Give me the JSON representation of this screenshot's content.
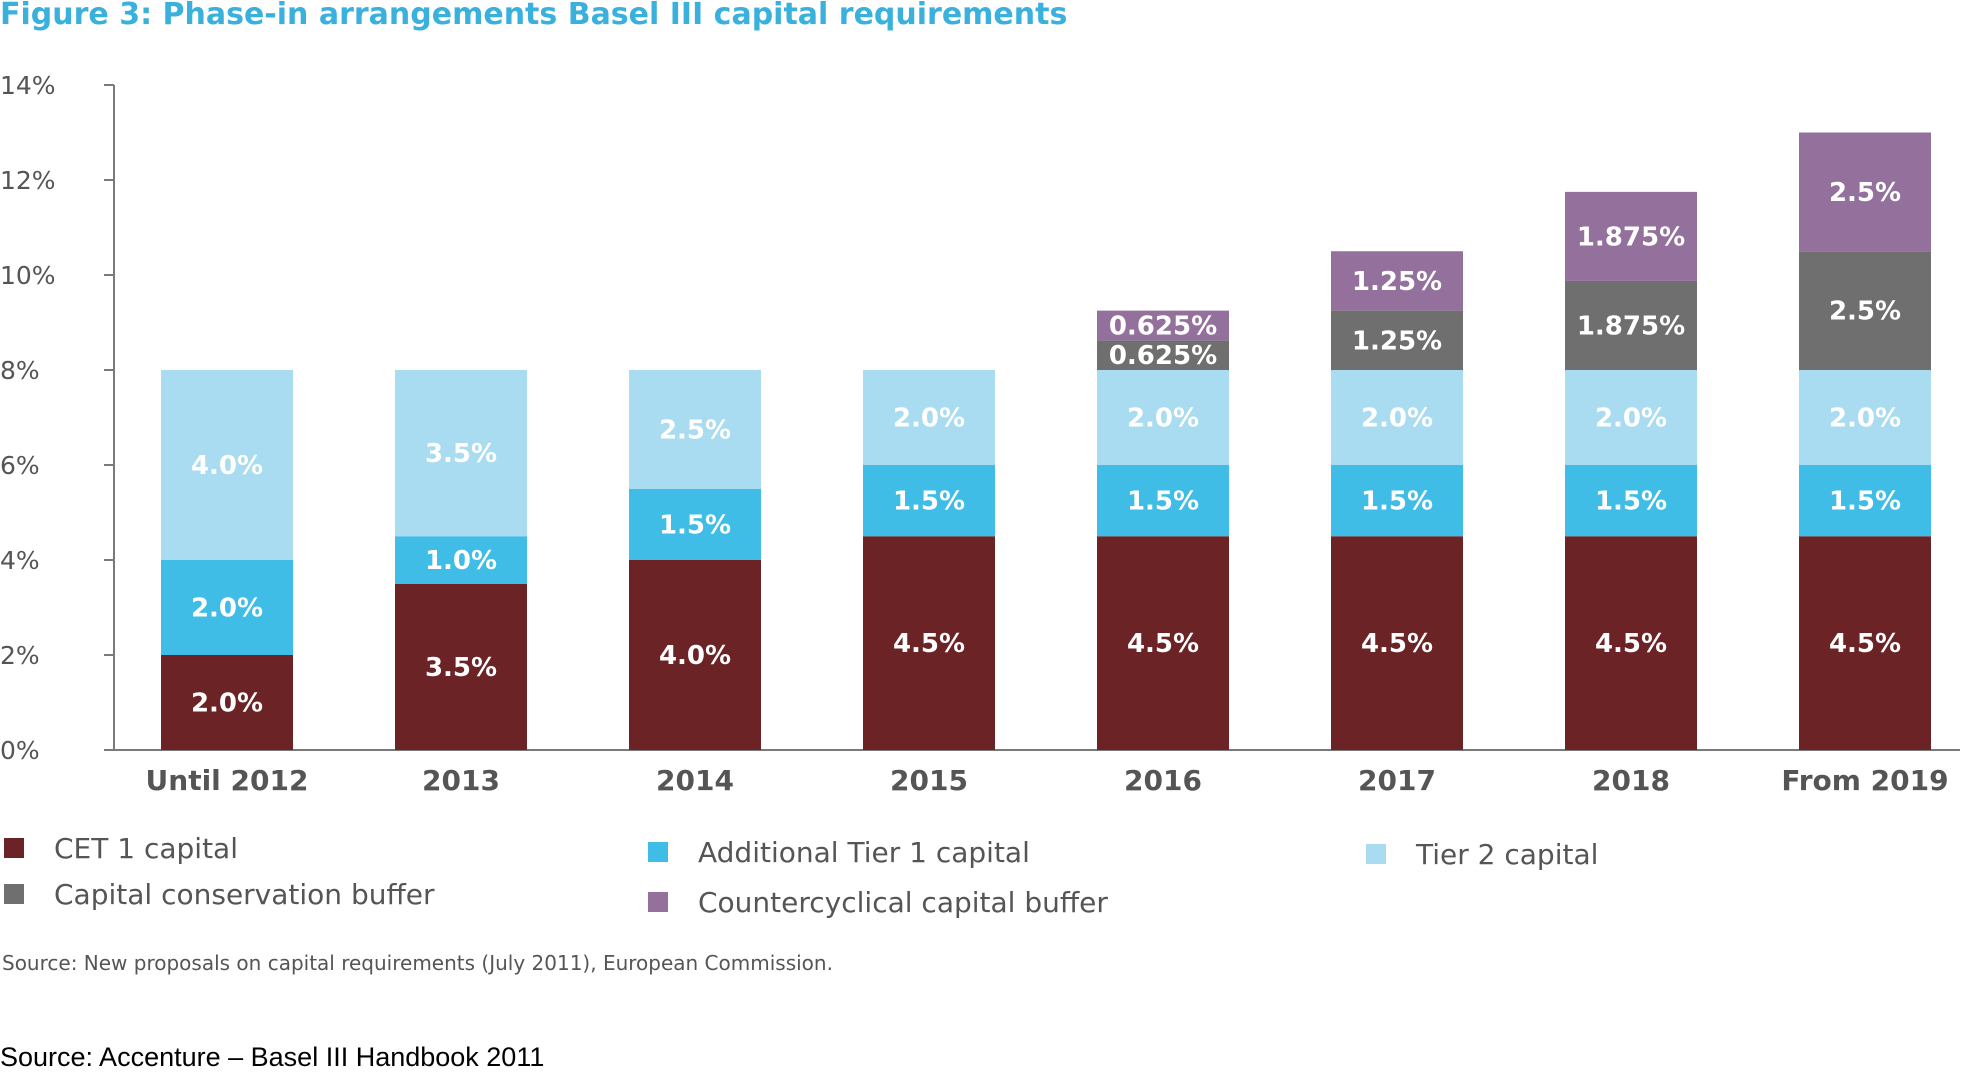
{
  "colors": {
    "title": "#3ab0dc",
    "axis": "#7a7a7a",
    "text": "#555555",
    "cet1": "#6b2326",
    "at1": "#40bde6",
    "tier2": "#a9dcf0",
    "conservation": "#6f6f6f",
    "countercyclical": "#94719c"
  },
  "chart_data": {
    "type": "bar",
    "stacked": true,
    "title": "Figure 3: Phase-in arrangements Basel III capital requirements",
    "xlabel": "",
    "ylabel": "",
    "ylim": [
      0,
      14
    ],
    "yticks": [
      "0%",
      "2%",
      "4%",
      "6%",
      "8%",
      "10%",
      "12%",
      "14%"
    ],
    "grid": false,
    "categories": [
      "Until 2012",
      "2013",
      "2014",
      "2015",
      "2016",
      "2017",
      "2018",
      "From 2019"
    ],
    "series": [
      {
        "name": "CET 1 capital",
        "color_key": "cet1",
        "values": [
          2.0,
          3.5,
          4.0,
          4.5,
          4.5,
          4.5,
          4.5,
          4.5
        ],
        "labels": [
          "2.0%",
          "3.5%",
          "4.0%",
          "4.5%",
          "4.5%",
          "4.5%",
          "4.5%",
          "4.5%"
        ]
      },
      {
        "name": "Additional Tier 1 capital",
        "color_key": "at1",
        "values": [
          2.0,
          1.0,
          1.5,
          1.5,
          1.5,
          1.5,
          1.5,
          1.5
        ],
        "labels": [
          "2.0%",
          "1.0%",
          "1.5%",
          "1.5%",
          "1.5%",
          "1.5%",
          "1.5%",
          "1.5%"
        ]
      },
      {
        "name": "Tier 2 capital",
        "color_key": "tier2",
        "values": [
          4.0,
          3.5,
          2.5,
          2.0,
          2.0,
          2.0,
          2.0,
          2.0
        ],
        "labels": [
          "4.0%",
          "3.5%",
          "2.5%",
          "2.0%",
          "2.0%",
          "2.0%",
          "2.0%",
          "2.0%"
        ]
      },
      {
        "name": "Capital conservation buffer",
        "color_key": "conservation",
        "values": [
          0,
          0,
          0,
          0,
          0.625,
          1.25,
          1.875,
          2.5
        ],
        "labels": [
          "",
          "",
          "",
          "",
          "0.625%",
          "1.25%",
          "1.875%",
          "2.5%"
        ]
      },
      {
        "name": "Countercyclical capital buffer",
        "color_key": "countercyclical",
        "values": [
          0,
          0,
          0,
          0,
          0.625,
          1.25,
          1.875,
          2.5
        ],
        "labels": [
          "",
          "",
          "",
          "",
          "0.625%",
          "1.25%",
          "1.875%",
          "2.5%"
        ]
      }
    ],
    "legend": {
      "placement": "bottom",
      "order": [
        "CET 1 capital",
        "Additional Tier 1 capital",
        "Tier 2 capital",
        "Capital conservation buffer",
        "Countercyclical capital buffer"
      ]
    },
    "note": "Source: New proposals on capital requirements (July 2011), European Commission."
  },
  "footer": {
    "source": "Source: Accenture – Basel III Handbook 2011"
  }
}
